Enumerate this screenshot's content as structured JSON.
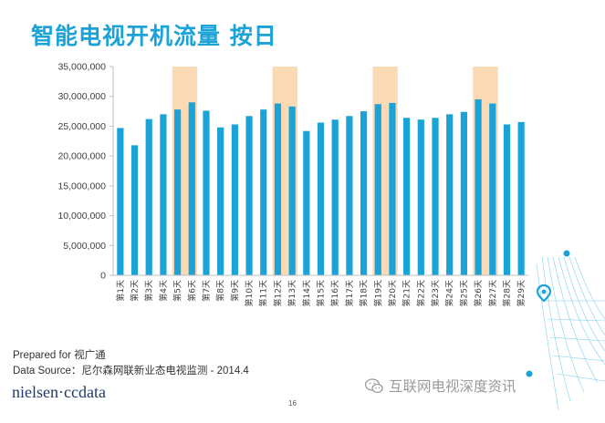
{
  "page": {
    "title": "智能电视开机流量 按日",
    "footer_prepared": "Prepared for 视广通",
    "footer_source": "Data Source：尼尔森网联新业态电视监测 - 2014.4",
    "brand": "nielsen·ccdata",
    "page_number": "16",
    "watermark": "互联网电视深度资讯",
    "watermark_icon": "wechat-icon"
  },
  "colors": {
    "bar": "#1ba3d8",
    "highlight": "#fad9b5",
    "title": "#1ba3d8",
    "axis": "#bfbfbf"
  },
  "chart_data": {
    "type": "bar",
    "title": "",
    "xlabel": "",
    "ylabel": "",
    "ylim": [
      0,
      35000000
    ],
    "yticks": [
      0,
      5000000,
      10000000,
      15000000,
      20000000,
      25000000,
      30000000,
      35000000
    ],
    "ytick_labels": [
      "0",
      "5,000,000",
      "10,000,000",
      "15,000,000",
      "20,000,000",
      "25,000,000",
      "30,000,000",
      "35,000,000"
    ],
    "grid": false,
    "categories": [
      "第1天",
      "第2天",
      "第3天",
      "第4天",
      "第5天",
      "第6天",
      "第7天",
      "第8天",
      "第9天",
      "第10天",
      "第11天",
      "第12天",
      "第13天",
      "第14天",
      "第15天",
      "第16天",
      "第17天",
      "第18天",
      "第19天",
      "第20天",
      "第21天",
      "第22天",
      "第23天",
      "第24天",
      "第25天",
      "第26天",
      "第27天",
      "第28天",
      "第29天"
    ],
    "values": [
      24700000,
      21800000,
      26200000,
      27000000,
      27800000,
      29000000,
      27600000,
      24800000,
      25300000,
      26700000,
      27800000,
      28800000,
      28300000,
      24200000,
      25600000,
      26100000,
      26700000,
      27500000,
      28700000,
      28900000,
      26400000,
      26100000,
      26400000,
      27000000,
      27400000,
      29500000,
      28800000,
      25300000,
      25700000
    ],
    "highlighted_ranges": [
      [
        "第5天",
        "第6天"
      ],
      [
        "第12天",
        "第13天"
      ],
      [
        "第19天",
        "第20天"
      ],
      [
        "第26天",
        "第27天"
      ]
    ]
  }
}
